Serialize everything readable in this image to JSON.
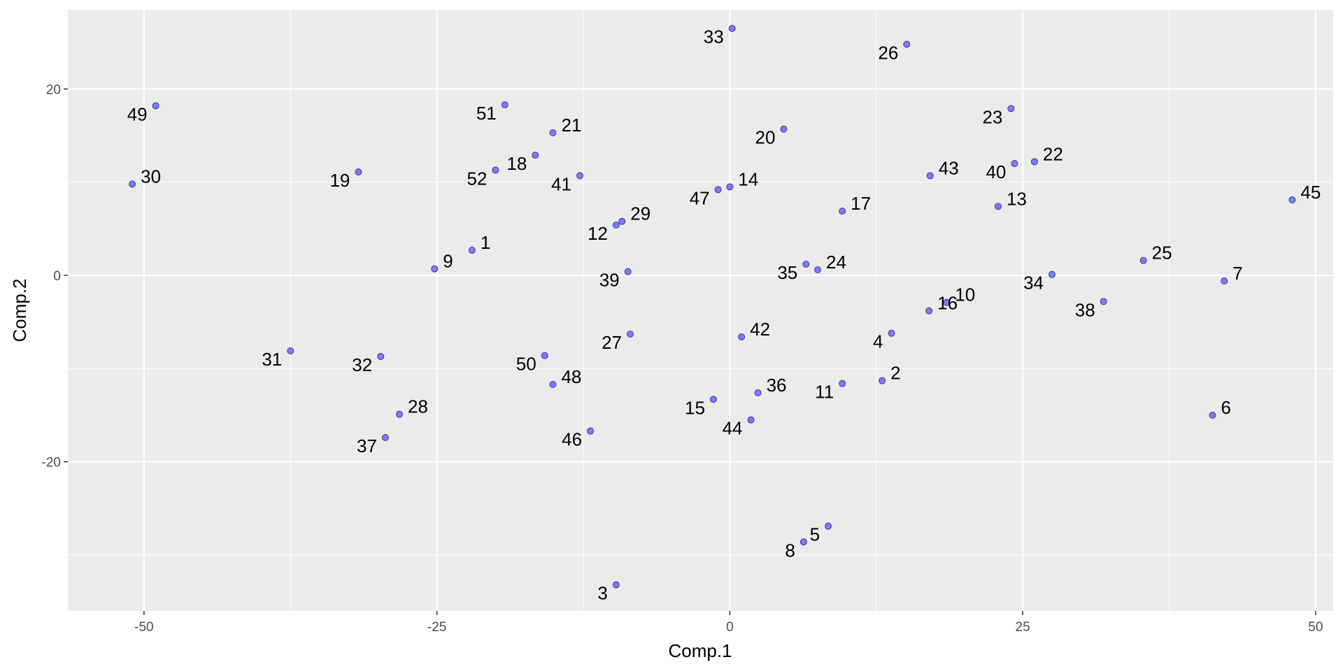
{
  "chart_data": {
    "type": "scatter",
    "xlabel": "Comp.1",
    "ylabel": "Comp.2",
    "xlim": [
      -56.5,
      51.5
    ],
    "ylim": [
      -36,
      28.5
    ],
    "x_ticks": [
      -50,
      -25,
      0,
      25,
      50
    ],
    "x_tick_labels": [
      "-50",
      "-25",
      "0",
      "25",
      "50"
    ],
    "y_ticks": [
      -20,
      0,
      20
    ],
    "y_tick_labels": [
      "-20",
      "0",
      "20"
    ],
    "grid": true,
    "colors": {
      "panel": "#ebebeb",
      "grid": "#ffffff",
      "point_fill": "#7b7bff",
      "point_stroke": "#3c3c8c"
    },
    "points": [
      {
        "label": "1",
        "x": -22.0,
        "y": 2.7,
        "label_pos": "right"
      },
      {
        "label": "2",
        "x": 13.0,
        "y": -11.3,
        "label_pos": "right"
      },
      {
        "label": "3",
        "x": -9.7,
        "y": -33.2,
        "label_pos": "left"
      },
      {
        "label": "4",
        "x": 13.8,
        "y": -6.2,
        "label_pos": "left"
      },
      {
        "label": "5",
        "x": 8.4,
        "y": -26.9,
        "label_pos": "left"
      },
      {
        "label": "6",
        "x": 41.2,
        "y": -15.0,
        "label_pos": "right"
      },
      {
        "label": "7",
        "x": 42.2,
        "y": -0.6,
        "label_pos": "right"
      },
      {
        "label": "8",
        "x": 6.3,
        "y": -28.6,
        "label_pos": "left"
      },
      {
        "label": "9",
        "x": -25.2,
        "y": 0.7,
        "label_pos": "right"
      },
      {
        "label": "10",
        "x": 18.5,
        "y": -2.9,
        "label_pos": "right"
      },
      {
        "label": "11",
        "x": 9.6,
        "y": -11.6,
        "label_pos": "left"
      },
      {
        "label": "12",
        "x": -9.7,
        "y": 5.4,
        "label_pos": "left"
      },
      {
        "label": "13",
        "x": 22.9,
        "y": 7.4,
        "label_pos": "right"
      },
      {
        "label": "14",
        "x": 0.0,
        "y": 9.5,
        "label_pos": "right"
      },
      {
        "label": "15",
        "x": -1.4,
        "y": -13.3,
        "label_pos": "left"
      },
      {
        "label": "16",
        "x": 17.0,
        "y": -3.8,
        "label_pos": "right"
      },
      {
        "label": "17",
        "x": 9.6,
        "y": 6.9,
        "label_pos": "right"
      },
      {
        "label": "18",
        "x": -16.6,
        "y": 12.9,
        "label_pos": "left"
      },
      {
        "label": "19",
        "x": -31.7,
        "y": 11.1,
        "label_pos": "left"
      },
      {
        "label": "20",
        "x": 4.6,
        "y": 15.7,
        "label_pos": "left"
      },
      {
        "label": "21",
        "x": -15.1,
        "y": 15.3,
        "label_pos": "right"
      },
      {
        "label": "22",
        "x": 26.0,
        "y": 12.2,
        "label_pos": "right"
      },
      {
        "label": "23",
        "x": 24.0,
        "y": 17.9,
        "label_pos": "left"
      },
      {
        "label": "24",
        "x": 7.5,
        "y": 0.6,
        "label_pos": "right"
      },
      {
        "label": "25",
        "x": 35.3,
        "y": 1.6,
        "label_pos": "right"
      },
      {
        "label": "26",
        "x": 15.1,
        "y": 24.8,
        "label_pos": "left"
      },
      {
        "label": "27",
        "x": -8.5,
        "y": -6.3,
        "label_pos": "left"
      },
      {
        "label": "28",
        "x": -28.2,
        "y": -14.9,
        "label_pos": "right"
      },
      {
        "label": "29",
        "x": -9.2,
        "y": 5.8,
        "label_pos": "right"
      },
      {
        "label": "30",
        "x": -51.0,
        "y": 9.8,
        "label_pos": "right"
      },
      {
        "label": "31",
        "x": -37.5,
        "y": -8.1,
        "label_pos": "left"
      },
      {
        "label": "32",
        "x": -29.8,
        "y": -8.7,
        "label_pos": "left"
      },
      {
        "label": "33",
        "x": 0.2,
        "y": 26.5,
        "label_pos": "left"
      },
      {
        "label": "34",
        "x": 27.5,
        "y": 0.1,
        "label_pos": "left"
      },
      {
        "label": "35",
        "x": 6.5,
        "y": 1.2,
        "label_pos": "left"
      },
      {
        "label": "36",
        "x": 2.4,
        "y": -12.6,
        "label_pos": "right"
      },
      {
        "label": "37",
        "x": -29.4,
        "y": -17.4,
        "label_pos": "left"
      },
      {
        "label": "38",
        "x": 31.9,
        "y": -2.8,
        "label_pos": "left"
      },
      {
        "label": "39",
        "x": -8.7,
        "y": 0.4,
        "label_pos": "left"
      },
      {
        "label": "40",
        "x": 24.3,
        "y": 12.0,
        "label_pos": "left"
      },
      {
        "label": "41",
        "x": -12.8,
        "y": 10.7,
        "label_pos": "left"
      },
      {
        "label": "42",
        "x": 1.0,
        "y": -6.6,
        "label_pos": "right"
      },
      {
        "label": "43",
        "x": 17.1,
        "y": 10.7,
        "label_pos": "right"
      },
      {
        "label": "44",
        "x": 1.8,
        "y": -15.5,
        "label_pos": "left"
      },
      {
        "label": "45",
        "x": 48.0,
        "y": 8.1,
        "label_pos": "right"
      },
      {
        "label": "46",
        "x": -11.9,
        "y": -16.7,
        "label_pos": "left"
      },
      {
        "label": "47",
        "x": -1.0,
        "y": 9.2,
        "label_pos": "left"
      },
      {
        "label": "48",
        "x": -15.1,
        "y": -11.7,
        "label_pos": "right"
      },
      {
        "label": "49",
        "x": -49.0,
        "y": 18.2,
        "label_pos": "left"
      },
      {
        "label": "50",
        "x": -15.8,
        "y": -8.6,
        "label_pos": "left"
      },
      {
        "label": "51",
        "x": -19.2,
        "y": 18.3,
        "label_pos": "left"
      },
      {
        "label": "52",
        "x": -20.0,
        "y": 11.3,
        "label_pos": "left"
      }
    ]
  }
}
